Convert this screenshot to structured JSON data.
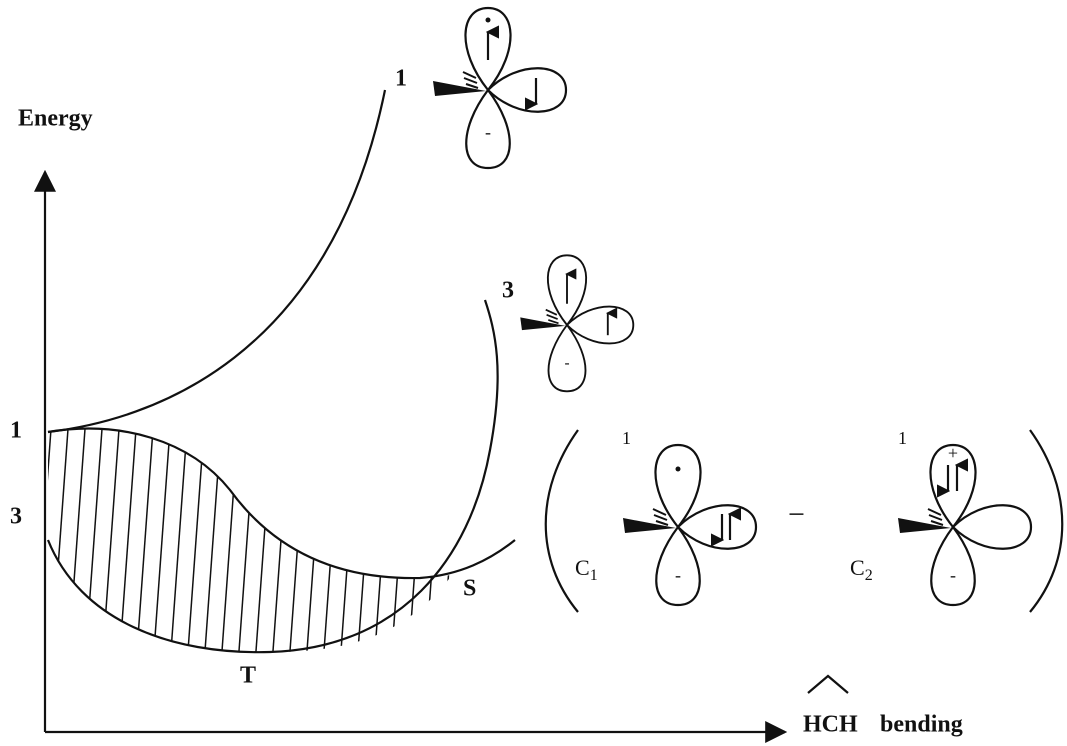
{
  "axis": {
    "y_label": "Energy",
    "x_label_hat": "HCH",
    "x_label": "bending",
    "singlet_level": "1",
    "triplet_level": "3"
  },
  "curves": {
    "singlet": "1",
    "triplet": "3",
    "crossing": "S",
    "minimum": "T"
  },
  "orbitals": {
    "singlet_excited": {
      "bottom_sign": "-"
    },
    "triplet": {
      "bottom_sign": "-"
    },
    "combination": {
      "first": {
        "multiplicity": "1",
        "atom": "C",
        "index": "1",
        "bottom_sign": "-"
      },
      "operator": "−",
      "second": {
        "multiplicity": "1",
        "atom": "C",
        "index": "2",
        "top_sign": "+",
        "bottom_sign": "-"
      }
    }
  }
}
